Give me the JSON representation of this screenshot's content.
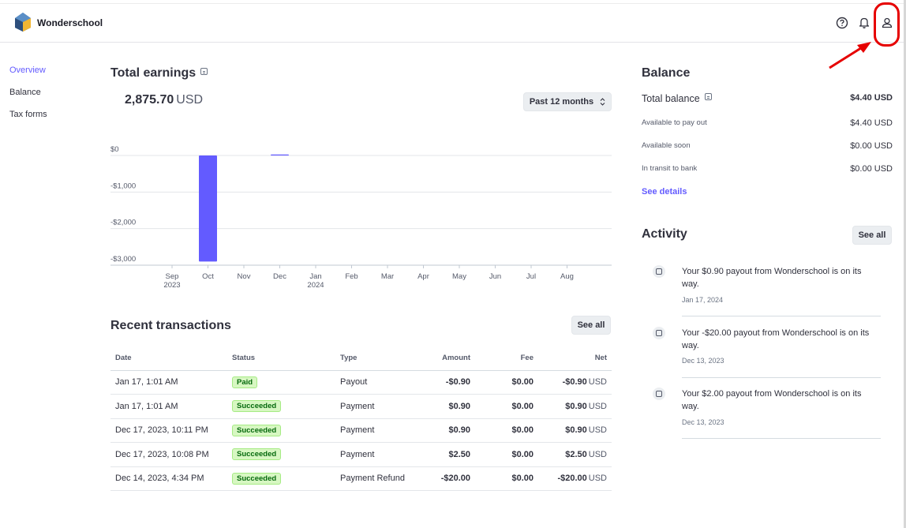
{
  "app": {
    "name": "Wonderschool"
  },
  "colors": {
    "accent": "#635bff",
    "bar": "#635bff",
    "highlight": "#e60000",
    "success_bg": "#d7f7c2",
    "success_text": "#05690d"
  },
  "header": {
    "icons": [
      "help-icon",
      "bell-icon",
      "user-icon"
    ]
  },
  "sidebar": {
    "items": [
      {
        "label": "Overview",
        "active": true
      },
      {
        "label": "Balance",
        "active": false
      },
      {
        "label": "Tax forms",
        "active": false
      }
    ]
  },
  "earnings": {
    "title": "Total earnings",
    "amount": "2,875.70",
    "currency": "USD",
    "period_select": "Past 12 months"
  },
  "chart_data": {
    "type": "bar",
    "categories": [
      "Sep 2023",
      "Oct",
      "Nov",
      "Dec",
      "Jan 2024",
      "Feb",
      "Mar",
      "Apr",
      "May",
      "Jun",
      "Jul",
      "Aug"
    ],
    "tick_labels": [
      [
        "Sep",
        "2023"
      ],
      [
        "Oct",
        ""
      ],
      [
        "Nov",
        ""
      ],
      [
        "Dec",
        ""
      ],
      [
        "Jan",
        "2024"
      ],
      [
        "Feb",
        ""
      ],
      [
        "Mar",
        ""
      ],
      [
        "Apr",
        ""
      ],
      [
        "May",
        ""
      ],
      [
        "Jun",
        ""
      ],
      [
        "Jul",
        ""
      ],
      [
        "Aug",
        ""
      ]
    ],
    "values": [
      0,
      -2900,
      0,
      18,
      0,
      0,
      0,
      0,
      0,
      0,
      0,
      0
    ],
    "yticks": [
      0,
      -1000,
      -2000,
      -3000
    ],
    "ytick_labels": [
      "$0",
      "-$1,000",
      "-$2,000",
      "-$3,000"
    ],
    "ylim": [
      -3000,
      0
    ],
    "grid": true
  },
  "transactions": {
    "title": "Recent transactions",
    "see_all": "See all",
    "columns": [
      "Date",
      "Status",
      "Type",
      "Amount",
      "Fee",
      "Net"
    ],
    "rows": [
      {
        "date": "Jan 17, 1:01 AM",
        "status": "Paid",
        "type": "Payout",
        "amount": "-$0.90",
        "fee": "$0.00",
        "net": "-$0.90",
        "net_cur": "USD"
      },
      {
        "date": "Jan 17, 1:01 AM",
        "status": "Succeeded",
        "type": "Payment",
        "amount": "$0.90",
        "fee": "$0.00",
        "net": "$0.90",
        "net_cur": "USD"
      },
      {
        "date": "Dec 17, 2023, 10:11 PM",
        "status": "Succeeded",
        "type": "Payment",
        "amount": "$0.90",
        "fee": "$0.00",
        "net": "$0.90",
        "net_cur": "USD"
      },
      {
        "date": "Dec 17, 2023, 10:08 PM",
        "status": "Succeeded",
        "type": "Payment",
        "amount": "$2.50",
        "fee": "$0.00",
        "net": "$2.50",
        "net_cur": "USD"
      },
      {
        "date": "Dec 14, 2023, 4:34 PM",
        "status": "Succeeded",
        "type": "Payment Refund",
        "amount": "-$20.00",
        "fee": "$0.00",
        "net": "-$20.00",
        "net_cur": "USD"
      }
    ]
  },
  "balance": {
    "title": "Balance",
    "total_label": "Total balance",
    "total_value": "$4.40 USD",
    "rows": [
      {
        "label": "Available to pay out",
        "value": "$4.40 USD"
      },
      {
        "label": "Available soon",
        "value": "$0.00 USD"
      },
      {
        "label": "In transit to bank",
        "value": "$0.00 USD"
      }
    ],
    "see_details": "See details"
  },
  "activity": {
    "title": "Activity",
    "see_all": "See all",
    "items": [
      {
        "text": "Your $0.90 payout from Wonderschool is on its way.",
        "date": "Jan 17, 2024"
      },
      {
        "text": "Your -$20.00 payout from Wonderschool is on its way.",
        "date": "Dec 13, 2023"
      },
      {
        "text": "Your $2.00 payout from Wonderschool is on its way.",
        "date": "Dec 13, 2023"
      }
    ]
  }
}
